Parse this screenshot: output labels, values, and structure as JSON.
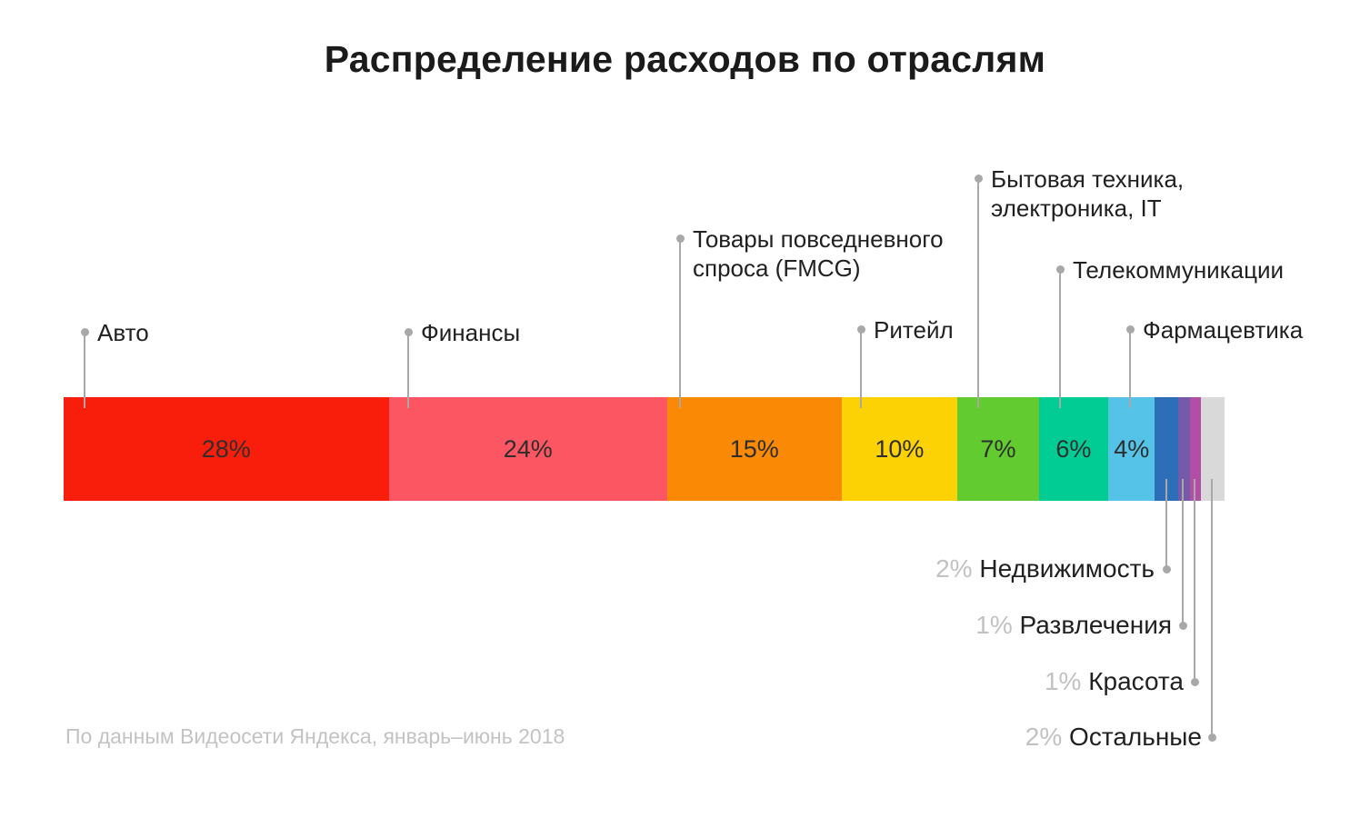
{
  "page": {
    "title": "Распределение расходов по отраслям",
    "source_note": "По данным Видеосети Яндекса, январь–июнь 2018",
    "background_color": "#ffffff",
    "leader_line_color": "#a8a8a8"
  },
  "chart_data": {
    "type": "bar",
    "variant": "horizontal_stacked_100_percent",
    "title": "Распределение расходов по отраслям",
    "unit": "%",
    "grid": false,
    "legend_position": "none",
    "categories": [
      "Авто",
      "Финансы",
      "Товары повседневного спроса (FMCG)",
      "Ритейл",
      "Бытовая техника, электроника, IT",
      "Телекоммуникации",
      "Фармацевтика",
      "Недвижимость",
      "Развлечения",
      "Красота",
      "Остальные"
    ],
    "values": [
      28,
      24,
      15,
      10,
      7,
      6,
      4,
      2,
      1,
      1,
      2
    ],
    "segments": [
      {
        "label": "Авто",
        "value": 28,
        "value_label": "28%",
        "color": "#F91E0C",
        "label_placement": "above"
      },
      {
        "label": "Финансы",
        "value": 24,
        "value_label": "24%",
        "color": "#FC5662",
        "label_placement": "above"
      },
      {
        "label": "Товары повседневного спроса (FMCG)",
        "label_line1": "Товары повседневного",
        "label_line2": "спроса (FMCG)",
        "value": 15,
        "value_label": "15%",
        "color": "#FA8905",
        "label_placement": "above"
      },
      {
        "label": "Ритейл",
        "value": 10,
        "value_label": "10%",
        "color": "#FCD205",
        "label_placement": "above"
      },
      {
        "label": "Бытовая техника, электроника, IT",
        "label_line1": "Бытовая техника,",
        "label_line2": "электроника, IT",
        "value": 7,
        "value_label": "7%",
        "color": "#61CB2F",
        "label_placement": "above"
      },
      {
        "label": "Телекоммуникации",
        "value": 6,
        "value_label": "6%",
        "color": "#00CC94",
        "label_placement": "above"
      },
      {
        "label": "Фармацевтика",
        "value": 4,
        "value_label": "4%",
        "color": "#55C3E8",
        "label_placement": "above"
      },
      {
        "label": "Недвижимость",
        "value": 2,
        "value_label": "2%",
        "color": "#2D6EB8",
        "label_placement": "below"
      },
      {
        "label": "Развлечения",
        "value": 1,
        "value_label": "1%",
        "color": "#755AA9",
        "label_placement": "below"
      },
      {
        "label": "Красота",
        "value": 1,
        "value_label": "1%",
        "color": "#B34EA7",
        "label_placement": "below"
      },
      {
        "label": "Остальные",
        "value": 2,
        "value_label": "2%",
        "color": "#D9D9D9",
        "label_placement": "below"
      }
    ],
    "source": "По данным Видеосети Яндекса, январь–июнь 2018"
  }
}
